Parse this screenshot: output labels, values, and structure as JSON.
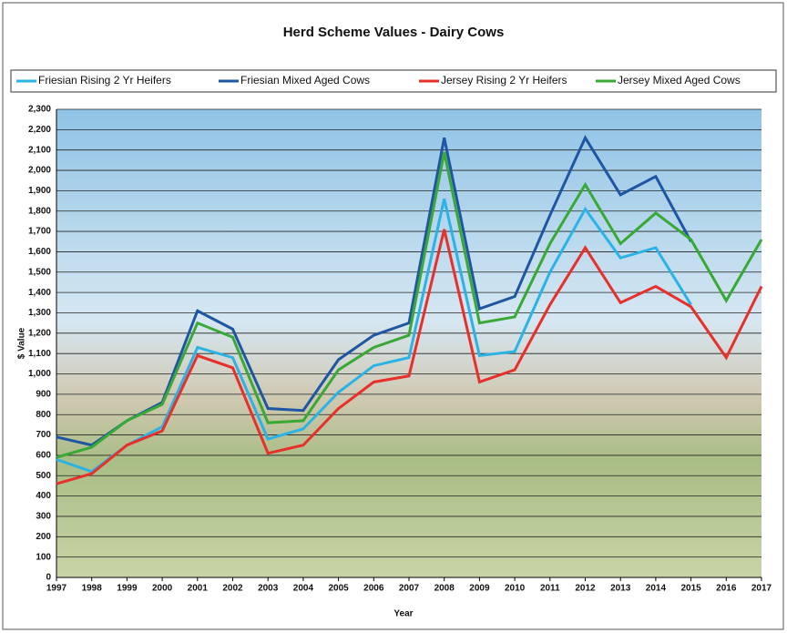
{
  "chart_data": {
    "type": "line",
    "title": "Herd Scheme Values - Dairy Cows",
    "x_label": "Year",
    "y_label": "$ Value",
    "categories": [
      "1997",
      "1998",
      "1999",
      "2000",
      "2001",
      "2002",
      "2003",
      "2004",
      "2005",
      "2006",
      "2007",
      "2008",
      "2009",
      "2010",
      "2011",
      "2012",
      "2013",
      "2014",
      "2015",
      "2016",
      "2017"
    ],
    "series": [
      {
        "name": "Friesian Rising 2 Yr Heifers",
        "color": "#2bb3e6",
        "values": [
          580,
          520,
          650,
          740,
          1130,
          1080,
          680,
          730,
          910,
          1040,
          1080,
          1860,
          1090,
          1110,
          1500,
          1810,
          1570,
          1620,
          1340,
          null,
          null
        ]
      },
      {
        "name": "Friesian Mixed Aged Cows",
        "color": "#1f56a3",
        "values": [
          690,
          650,
          770,
          860,
          1310,
          1220,
          830,
          820,
          1070,
          1190,
          1250,
          2160,
          1320,
          1380,
          1780,
          2160,
          1880,
          1970,
          1650,
          null,
          null
        ]
      },
      {
        "name": "Jersey Rising 2 Yr Heifers",
        "color": "#e8302a",
        "values": [
          460,
          510,
          650,
          720,
          1090,
          1030,
          610,
          650,
          830,
          960,
          990,
          1710,
          960,
          1020,
          1340,
          1620,
          1350,
          1430,
          1330,
          1080,
          1430
        ]
      },
      {
        "name": "Jersey Mixed Aged Cows",
        "color": "#39a935",
        "values": [
          590,
          640,
          770,
          850,
          1250,
          1180,
          760,
          770,
          1020,
          1130,
          1190,
          2090,
          1250,
          1280,
          1640,
          1930,
          1640,
          1790,
          1660,
          1360,
          1660
        ]
      }
    ],
    "ylim": [
      0,
      2300
    ],
    "yticks": [
      0,
      100,
      200,
      300,
      400,
      500,
      600,
      700,
      800,
      900,
      {
        "value": 1000,
        "label": "1,000"
      },
      {
        "value": 1100,
        "label": "1,100"
      },
      {
        "value": 1200,
        "label": "1,200"
      },
      {
        "value": 1300,
        "label": "1,300"
      },
      {
        "value": 1400,
        "label": "1,400"
      },
      {
        "value": 1500,
        "label": "1,500"
      },
      {
        "value": 1600,
        "label": "1,600"
      },
      {
        "value": 1700,
        "label": "1,700"
      },
      {
        "value": 1800,
        "label": "1,800"
      },
      {
        "value": 1900,
        "label": "1,900"
      },
      {
        "value": 2000,
        "label": "2,000"
      },
      {
        "value": 2100,
        "label": "2,100"
      },
      {
        "value": 2200,
        "label": "2,200"
      },
      {
        "value": 2300,
        "label": "2,300"
      }
    ],
    "grid": true
  }
}
